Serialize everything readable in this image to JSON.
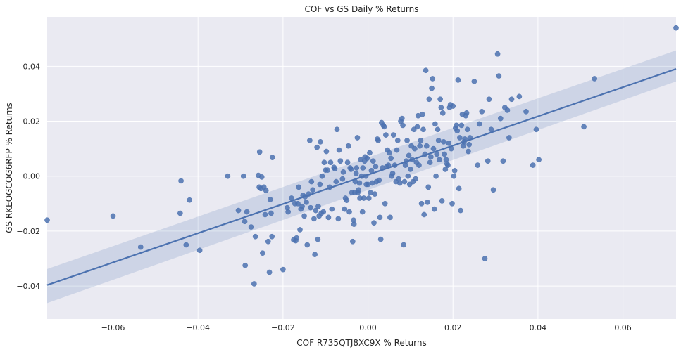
{
  "chart_data": {
    "type": "scatter",
    "title": "COF vs GS Daily % Returns",
    "xlabel": "COF R735QTJ8XC9X % Returns",
    "ylabel": "GS RKEOGCOG6RFP % Returns",
    "xlim": [
      -0.0755,
      0.0725
    ],
    "ylim": [
      -0.052,
      0.058
    ],
    "xticks": [
      -0.06,
      -0.04,
      -0.02,
      0.0,
      0.02,
      0.04,
      0.06
    ],
    "xtick_labels": [
      "−0.06",
      "−0.04",
      "−0.02",
      "0.00",
      "0.02",
      "0.04",
      "0.06"
    ],
    "yticks": [
      -0.04,
      -0.02,
      0.0,
      0.02,
      0.04
    ],
    "ytick_labels": [
      "−0.04",
      "−0.02",
      "0.00",
      "0.02",
      "0.04"
    ],
    "grid": true,
    "regression": {
      "slope": 0.5318,
      "intercept": 0.0005,
      "ci_at_x_min": [
        -0.0462,
        -0.0338
      ],
      "ci_at_x_max": [
        0.0345,
        0.0458
      ]
    },
    "colors": {
      "points": "#4c72b0",
      "line": "#4c72b0",
      "band": "#4c72b0",
      "background": "#eaeaf2",
      "grid": "#ffffff"
    },
    "points": [
      [
        -0.0755,
        -0.016
      ],
      [
        -0.06,
        -0.0145
      ],
      [
        -0.0535,
        -0.0258
      ],
      [
        -0.0442,
        -0.0135
      ],
      [
        -0.044,
        -0.0017
      ],
      [
        -0.0428,
        -0.025
      ],
      [
        -0.042,
        -0.0087
      ],
      [
        -0.0396,
        -0.027
      ],
      [
        -0.033,
        0.0
      ],
      [
        -0.0305,
        -0.0125
      ],
      [
        -0.0293,
        0.0
      ],
      [
        -0.029,
        -0.0165
      ],
      [
        -0.0289,
        -0.0325
      ],
      [
        -0.0285,
        -0.013
      ],
      [
        -0.0275,
        -0.0185
      ],
      [
        -0.0268,
        -0.0392
      ],
      [
        -0.0265,
        -0.022
      ],
      [
        -0.0258,
        0.0003
      ],
      [
        -0.0256,
        -0.004
      ],
      [
        -0.0255,
        0.0088
      ],
      [
        -0.0252,
        -0.0045
      ],
      [
        -0.025,
        -0.0003
      ],
      [
        -0.0248,
        -0.028
      ],
      [
        -0.0245,
        -0.004
      ],
      [
        -0.0242,
        -0.014
      ],
      [
        -0.024,
        -0.0052
      ],
      [
        -0.0235,
        -0.0238
      ],
      [
        -0.0232,
        -0.035
      ],
      [
        -0.023,
        -0.0085
      ],
      [
        -0.0228,
        -0.0135
      ],
      [
        -0.0226,
        -0.022
      ],
      [
        -0.0225,
        0.0068
      ],
      [
        -0.02,
        -0.034
      ],
      [
        -0.019,
        -0.0115
      ],
      [
        -0.0188,
        -0.013
      ],
      [
        -0.018,
        -0.008
      ],
      [
        -0.0175,
        -0.0232
      ],
      [
        -0.0172,
        -0.01
      ],
      [
        -0.017,
        -0.0235
      ],
      [
        -0.0168,
        -0.0225
      ],
      [
        -0.0165,
        -0.01
      ],
      [
        -0.0163,
        -0.004
      ],
      [
        -0.016,
        -0.0195
      ],
      [
        -0.0158,
        -0.012
      ],
      [
        -0.0155,
        -0.011
      ],
      [
        -0.0153,
        -0.007
      ],
      [
        -0.015,
        -0.0145
      ],
      [
        -0.0148,
        -0.0075
      ],
      [
        -0.0145,
        -0.0095
      ],
      [
        -0.0143,
        -0.025
      ],
      [
        -0.014,
        -0.0065
      ],
      [
        -0.0137,
        0.013
      ],
      [
        -0.0135,
        -0.0115
      ],
      [
        -0.0133,
        -0.002
      ],
      [
        -0.013,
        -0.005
      ],
      [
        -0.0127,
        -0.0155
      ],
      [
        -0.0125,
        -0.0285
      ],
      [
        -0.0123,
        -0.0125
      ],
      [
        -0.012,
        0.0105
      ],
      [
        -0.0118,
        -0.023
      ],
      [
        -0.0117,
        -0.011
      ],
      [
        -0.0115,
        -0.0145
      ],
      [
        -0.0113,
        -0.003
      ],
      [
        -0.0112,
        0.0125
      ],
      [
        -0.011,
        -0.0135
      ],
      [
        -0.0108,
        0.0
      ],
      [
        -0.0105,
        -0.013
      ],
      [
        -0.0103,
        0.005
      ],
      [
        -0.01,
        0.0022
      ],
      [
        -0.0098,
        0.009
      ],
      [
        -0.0095,
        0.0022
      ],
      [
        -0.0093,
        -0.015
      ],
      [
        -0.009,
        -0.004
      ],
      [
        -0.0088,
        0.005
      ],
      [
        -0.0085,
        -0.012
      ],
      [
        -0.008,
        0.0032
      ],
      [
        -0.0078,
        0.0027
      ],
      [
        -0.0075,
        -0.002
      ],
      [
        -0.0073,
        0.017
      ],
      [
        -0.007,
        -0.0155
      ],
      [
        -0.0068,
        0.0095
      ],
      [
        -0.0065,
        0.0055
      ],
      [
        -0.006,
        -0.001
      ],
      [
        -0.0058,
        0.0015
      ],
      [
        -0.0055,
        -0.012
      ],
      [
        -0.0053,
        -0.008
      ],
      [
        -0.005,
        -0.0088
      ],
      [
        -0.0048,
        0.005
      ],
      [
        -0.0046,
        0.011
      ],
      [
        -0.0044,
        -0.013
      ],
      [
        -0.0042,
        0.003
      ],
      [
        -0.004,
        0.0025
      ],
      [
        -0.0038,
        -0.006
      ],
      [
        -0.0036,
        -0.0238
      ],
      [
        -0.0034,
        -0.016
      ],
      [
        -0.0033,
        -0.0175
      ],
      [
        -0.0031,
        -0.006
      ],
      [
        -0.003,
        -0.002
      ],
      [
        -0.0028,
        0.001
      ],
      [
        -0.0027,
        0.003
      ],
      [
        -0.0025,
        0.014
      ],
      [
        -0.0024,
        -0.006
      ],
      [
        -0.0022,
        -0.005
      ],
      [
        -0.002,
        -0.0025
      ],
      [
        -0.0019,
        -0.008
      ],
      [
        -0.0017,
        0.006
      ],
      [
        -0.0015,
        0.0
      ],
      [
        -0.0013,
        -0.013
      ],
      [
        -0.0012,
        0.003
      ],
      [
        -0.001,
        -0.008
      ],
      [
        -0.0008,
        0.0055
      ],
      [
        -0.0007,
        0.007
      ],
      [
        -0.0005,
        0.0
      ],
      [
        -0.0004,
        -0.003
      ],
      [
        -0.0002,
        0.0065
      ],
      [
        0.0,
        -0.003
      ],
      [
        0.0002,
        -0.008
      ],
      [
        0.0004,
        0.0085
      ],
      [
        0.0006,
        -0.006
      ],
      [
        0.0008,
        0.002
      ],
      [
        0.001,
        -0.0025
      ],
      [
        0.0012,
        0.0055
      ],
      [
        0.0014,
        -0.017
      ],
      [
        0.0016,
        -0.0065
      ],
      [
        0.0018,
        0.0035
      ],
      [
        0.002,
        -0.002
      ],
      [
        0.0022,
        0.0135
      ],
      [
        0.0024,
        0.013
      ],
      [
        0.0026,
        -0.0015
      ],
      [
        0.0028,
        -0.015
      ],
      [
        0.003,
        -0.023
      ],
      [
        0.0032,
        0.0195
      ],
      [
        0.0034,
        0.003
      ],
      [
        0.0036,
        0.0185
      ],
      [
        0.0038,
        0.018
      ],
      [
        0.004,
        -0.01
      ],
      [
        0.0042,
        0.015
      ],
      [
        0.0044,
        0.0035
      ],
      [
        0.0046,
        0.0095
      ],
      [
        0.0048,
        0.004
      ],
      [
        0.005,
        0.0085
      ],
      [
        0.0052,
        -0.015
      ],
      [
        0.0054,
        0.0065
      ],
      [
        0.0056,
        0.0
      ],
      [
        0.0058,
        0.001
      ],
      [
        0.006,
        0.015
      ],
      [
        0.0063,
        0.004
      ],
      [
        0.0066,
        -0.002
      ],
      [
        0.0068,
        0.0095
      ],
      [
        0.007,
        0.013
      ],
      [
        0.0072,
        -0.001
      ],
      [
        0.0075,
        -0.0025
      ],
      [
        0.0077,
        0.02
      ],
      [
        0.008,
        0.021
      ],
      [
        0.0082,
        0.0185
      ],
      [
        0.0084,
        -0.025
      ],
      [
        0.0086,
        -0.002
      ],
      [
        0.0088,
        0.004
      ],
      [
        0.009,
        0.0055
      ],
      [
        0.0092,
        0.013
      ],
      [
        0.0094,
        0.0
      ],
      [
        0.0096,
        0.0075
      ],
      [
        0.0098,
        -0.003
      ],
      [
        0.01,
        0.0025
      ],
      [
        0.0102,
        0.011
      ],
      [
        0.0104,
        0.006
      ],
      [
        0.0106,
        -0.002
      ],
      [
        0.0108,
        0.017
      ],
      [
        0.011,
        0.01
      ],
      [
        0.0112,
        -0.001
      ],
      [
        0.0114,
        0.005
      ],
      [
        0.0116,
        0.018
      ],
      [
        0.0118,
        0.022
      ],
      [
        0.012,
        0.004
      ],
      [
        0.0122,
        0.011
      ],
      [
        0.0124,
        0.013
      ],
      [
        0.0126,
        -0.01
      ],
      [
        0.0128,
        0.0225
      ],
      [
        0.013,
        0.017
      ],
      [
        0.0132,
        -0.014
      ],
      [
        0.0134,
        0.008
      ],
      [
        0.0136,
        0.0385
      ],
      [
        0.0138,
        0.011
      ],
      [
        0.014,
        -0.0095
      ],
      [
        0.0142,
        -0.004
      ],
      [
        0.0144,
        0.028
      ],
      [
        0.0146,
        0.005
      ],
      [
        0.0148,
        0.007
      ],
      [
        0.015,
        0.032
      ],
      [
        0.0152,
        0.0355
      ],
      [
        0.0154,
        0.01
      ],
      [
        0.0156,
        -0.012
      ],
      [
        0.0158,
        0.019
      ],
      [
        0.016,
        0.0
      ],
      [
        0.0162,
        0.008
      ],
      [
        0.0164,
        0.017
      ],
      [
        0.0166,
        0.013
      ],
      [
        0.0168,
        0.006
      ],
      [
        0.017,
        0.028
      ],
      [
        0.0172,
        0.025
      ],
      [
        0.0174,
        -0.009
      ],
      [
        0.0176,
        0.023
      ],
      [
        0.0178,
        0.0125
      ],
      [
        0.018,
        0.008
      ],
      [
        0.0182,
        0.0025
      ],
      [
        0.0184,
        0.006
      ],
      [
        0.0186,
        0.0045
      ],
      [
        0.0188,
        0.004
      ],
      [
        0.019,
        0.012
      ],
      [
        0.0192,
        0.025
      ],
      [
        0.0194,
        0.026
      ],
      [
        0.0196,
        0.01
      ],
      [
        0.0198,
        -0.01
      ],
      [
        0.02,
        0.0255
      ],
      [
        0.0202,
        0.0
      ],
      [
        0.0204,
        0.002
      ],
      [
        0.0206,
        0.0175
      ],
      [
        0.0208,
        0.0185
      ],
      [
        0.021,
        0.0165
      ],
      [
        0.0212,
        0.035
      ],
      [
        0.0214,
        -0.0045
      ],
      [
        0.0216,
        0.014
      ],
      [
        0.0218,
        -0.0125
      ],
      [
        0.022,
        0.0185
      ],
      [
        0.0222,
        0.0225
      ],
      [
        0.0224,
        0.011
      ],
      [
        0.0226,
        0.0125
      ],
      [
        0.0228,
        0.0135
      ],
      [
        0.023,
        0.022
      ],
      [
        0.0232,
        0.023
      ],
      [
        0.0234,
        0.017
      ],
      [
        0.0236,
        0.009
      ],
      [
        0.0238,
        0.0115
      ],
      [
        0.024,
        0.014
      ],
      [
        0.025,
        0.0345
      ],
      [
        0.0258,
        0.004
      ],
      [
        0.0262,
        0.019
      ],
      [
        0.0268,
        0.0235
      ],
      [
        0.0275,
        -0.03
      ],
      [
        0.0282,
        0.0055
      ],
      [
        0.0285,
        0.028
      ],
      [
        0.029,
        0.017
      ],
      [
        0.0295,
        -0.005
      ],
      [
        0.0305,
        0.0445
      ],
      [
        0.0308,
        0.0365
      ],
      [
        0.0312,
        0.021
      ],
      [
        0.0318,
        0.0055
      ],
      [
        0.0322,
        0.025
      ],
      [
        0.0328,
        0.024
      ],
      [
        0.0332,
        0.014
      ],
      [
        0.0338,
        0.028
      ],
      [
        0.0356,
        0.029
      ],
      [
        0.0372,
        0.0235
      ],
      [
        0.0388,
        0.004
      ],
      [
        0.0396,
        0.017
      ],
      [
        0.0402,
        0.006
      ],
      [
        0.0508,
        0.018
      ],
      [
        0.0533,
        0.0355
      ],
      [
        0.0725,
        0.054
      ]
    ]
  }
}
